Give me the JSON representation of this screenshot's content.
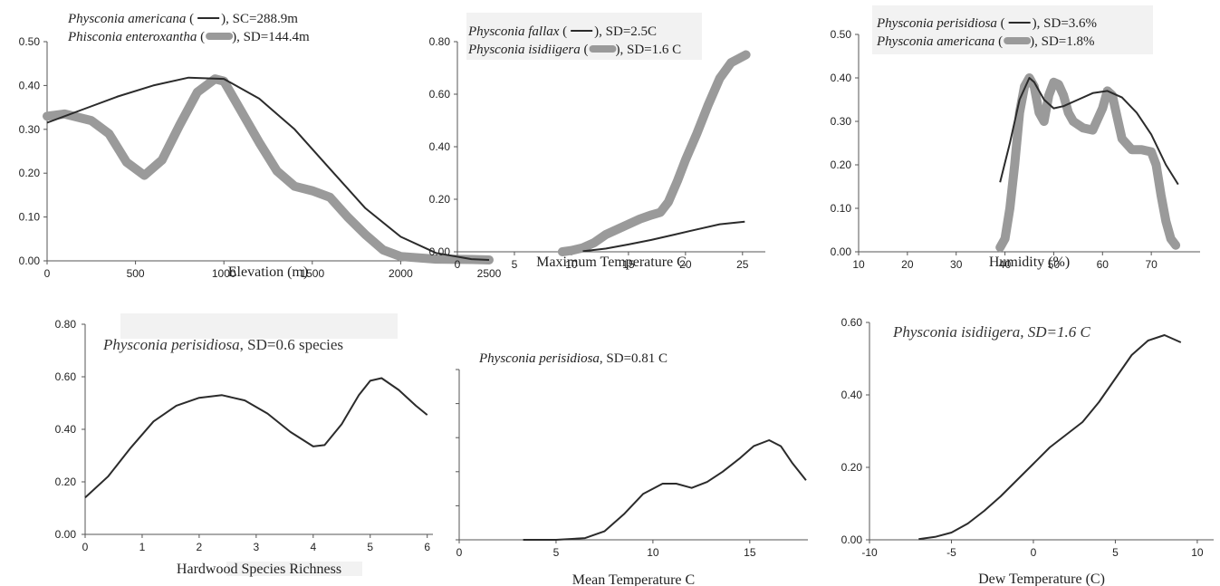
{
  "chart_data": [
    {
      "type": "line",
      "annotations": [
        {
          "italic": "Physconia americana",
          "rest": " (",
          "swatch": "line",
          "tail": "), SC=288.9m"
        },
        {
          "italic": "Phisconia enteroxantha",
          "rest": " (",
          "swatch": "band",
          "tail": "), SD=144.4m"
        }
      ],
      "xlabel": "Elevation (m)",
      "xlim": [
        0,
        2500
      ],
      "ylim": [
        0,
        0.5
      ],
      "xticks": [
        0,
        500,
        1000,
        1500,
        2000,
        2500
      ],
      "xtick_labels": [
        "0",
        "500",
        "1000",
        "1500",
        "2000",
        "2500"
      ],
      "yticks": [
        0,
        0.1,
        0.2,
        0.3,
        0.4,
        0.5
      ],
      "ytick_labels": [
        "0.00",
        "0.10",
        "0.20",
        "0.30",
        "0.40",
        "0.50"
      ],
      "series": [
        {
          "style": "line",
          "x": [
            0,
            200,
            400,
            600,
            800,
            1000,
            1200,
            1400,
            1600,
            1800,
            2000,
            2200,
            2400,
            2500
          ],
          "y": [
            0.315,
            0.345,
            0.375,
            0.4,
            0.418,
            0.415,
            0.37,
            0.3,
            0.21,
            0.12,
            0.055,
            0.018,
            0.004,
            0.002
          ]
        },
        {
          "style": "band",
          "x": [
            0,
            100,
            250,
            350,
            450,
            550,
            650,
            750,
            850,
            950,
            1000,
            1100,
            1200,
            1300,
            1400,
            1500,
            1600,
            1700,
            1800,
            1900,
            2000,
            2200,
            2400,
            2500
          ],
          "y": [
            0.33,
            0.335,
            0.32,
            0.29,
            0.225,
            0.195,
            0.23,
            0.31,
            0.385,
            0.415,
            0.41,
            0.34,
            0.27,
            0.205,
            0.17,
            0.16,
            0.145,
            0.1,
            0.06,
            0.025,
            0.01,
            0.004,
            0.003,
            0.002
          ]
        }
      ]
    },
    {
      "type": "line",
      "annotations": [
        {
          "italic": "Physconia fallax",
          "rest": " (",
          "swatch": "line",
          "tail": "), SD=2.5C"
        },
        {
          "italic": "Physconia isidiigera",
          "rest": " (",
          "swatch": "band",
          "tail": "), SD=1.6 C"
        }
      ],
      "xlabel": "Maximum Temperature C",
      "xlim": [
        0,
        27
      ],
      "ylim": [
        0,
        0.8
      ],
      "xticks": [
        0,
        5,
        10,
        15,
        20,
        25
      ],
      "xtick_labels": [
        "0",
        "5",
        "10",
        "15",
        "20",
        "25"
      ],
      "yticks": [
        0,
        0.2,
        0.4,
        0.6,
        0.8
      ],
      "ytick_labels": [
        "0.00",
        "0.20",
        "0.40",
        "0.60",
        "0.80"
      ],
      "series": [
        {
          "style": "line",
          "x": [
            11,
            13,
            15,
            17,
            19,
            21,
            23,
            25.2
          ],
          "y": [
            0.002,
            0.012,
            0.028,
            0.045,
            0.065,
            0.085,
            0.105,
            0.115
          ]
        },
        {
          "style": "band",
          "x": [
            9.2,
            10,
            11,
            12,
            13,
            14,
            15,
            16,
            17,
            17.8,
            18.5,
            19.3,
            20,
            21,
            22,
            23,
            24,
            25.3
          ],
          "y": [
            0,
            0.005,
            0.015,
            0.035,
            0.065,
            0.085,
            0.105,
            0.125,
            0.14,
            0.15,
            0.19,
            0.27,
            0.35,
            0.45,
            0.56,
            0.66,
            0.72,
            0.75
          ]
        }
      ]
    },
    {
      "type": "line",
      "annotations": [
        {
          "italic": "Physconia perisidiosa",
          "rest": " (",
          "swatch": "line",
          "tail": "), SD=3.6%"
        },
        {
          "italic": "Physconia americana",
          "rest": " (",
          "swatch": "band",
          "tail": "), SD=1.8%"
        }
      ],
      "xlabel": "Humidity (%)",
      "xlim": [
        10,
        80
      ],
      "ylim": [
        0,
        0.5
      ],
      "xticks": [
        10,
        20,
        30,
        40,
        50,
        60,
        70
      ],
      "xtick_labels": [
        "10",
        "20",
        "30",
        "40",
        "50",
        "60",
        "70"
      ],
      "yticks": [
        0,
        0.1,
        0.2,
        0.3,
        0.4,
        0.5
      ],
      "ytick_labels": [
        "0.00",
        "0.10",
        "0.20",
        "0.30",
        "0.40",
        "0.50"
      ],
      "series": [
        {
          "style": "line",
          "x": [
            39,
            41,
            43,
            45,
            46,
            48,
            50,
            52,
            55,
            58,
            61,
            64,
            67,
            70,
            73,
            75.5
          ],
          "y": [
            0.16,
            0.25,
            0.35,
            0.4,
            0.39,
            0.35,
            0.33,
            0.335,
            0.35,
            0.365,
            0.37,
            0.355,
            0.32,
            0.27,
            0.2,
            0.155
          ]
        },
        {
          "style": "band",
          "x": [
            39,
            40,
            41,
            42,
            43,
            44,
            45,
            46,
            47,
            48,
            49,
            50,
            51,
            52,
            53,
            54,
            56,
            58,
            60,
            61,
            62,
            63,
            64,
            66,
            68,
            70,
            71,
            72,
            73,
            74,
            75
          ],
          "y": [
            0.01,
            0.03,
            0.1,
            0.2,
            0.32,
            0.38,
            0.4,
            0.38,
            0.32,
            0.3,
            0.36,
            0.39,
            0.385,
            0.36,
            0.32,
            0.3,
            0.285,
            0.28,
            0.33,
            0.37,
            0.36,
            0.31,
            0.26,
            0.235,
            0.235,
            0.23,
            0.2,
            0.13,
            0.07,
            0.03,
            0.015
          ]
        }
      ]
    },
    {
      "type": "line",
      "annotations": [
        {
          "italic": "Physconia perisidiosa",
          "rest": ", SD=0.6 species"
        }
      ],
      "xlabel": "Hardwood Species Richness",
      "xlim": [
        0,
        6.1
      ],
      "ylim": [
        0,
        0.8
      ],
      "xticks": [
        0,
        1,
        2,
        3,
        4,
        5,
        6
      ],
      "xtick_labels": [
        "0",
        "1",
        "2",
        "3",
        "4",
        "5",
        "6"
      ],
      "yticks": [
        0,
        0.2,
        0.4,
        0.6,
        0.8
      ],
      "ytick_labels": [
        "0.00",
        "0.20",
        "0.40",
        "0.60",
        "0.80"
      ],
      "series": [
        {
          "style": "line",
          "x": [
            0,
            0.4,
            0.8,
            1.2,
            1.6,
            2.0,
            2.4,
            2.8,
            3.2,
            3.6,
            4.0,
            4.2,
            4.5,
            4.8,
            5.0,
            5.2,
            5.5,
            5.8,
            6.0
          ],
          "y": [
            0.14,
            0.22,
            0.33,
            0.43,
            0.49,
            0.52,
            0.53,
            0.51,
            0.46,
            0.39,
            0.335,
            0.34,
            0.42,
            0.53,
            0.585,
            0.595,
            0.55,
            0.49,
            0.455
          ]
        }
      ]
    },
    {
      "type": "line",
      "annotations": [
        {
          "italic": "Physconia perisidiosa",
          "rest": ", SD=0.81 C"
        }
      ],
      "xlabel": "Mean Temperature C",
      "xlim": [
        0,
        18
      ],
      "ylim": [
        0,
        1
      ],
      "xticks": [
        0,
        5,
        10,
        15
      ],
      "xtick_labels": [
        "0",
        "5",
        "10",
        "15"
      ],
      "yticks": [
        0,
        0.2,
        0.4,
        0.6,
        0.8,
        1
      ],
      "series": [
        {
          "style": "line",
          "x": [
            3.3,
            5,
            6.5,
            7.5,
            8.5,
            9.5,
            10.5,
            11.2,
            12,
            12.8,
            13.6,
            14.5,
            15.2,
            16,
            16.6,
            17.2,
            17.9
          ],
          "y": [
            0.0,
            0.0,
            0.01,
            0.05,
            0.15,
            0.27,
            0.33,
            0.33,
            0.305,
            0.34,
            0.4,
            0.48,
            0.55,
            0.585,
            0.55,
            0.45,
            0.35
          ]
        }
      ]
    },
    {
      "type": "line",
      "annotations": [
        {
          "italic": "Physconia isidiigera, SD=1.6 C",
          "rest": ""
        }
      ],
      "xlabel": "Dew Temperature (C)",
      "xlim": [
        -10,
        11
      ],
      "ylim": [
        0,
        0.6
      ],
      "xticks": [
        -10,
        -5,
        0,
        5,
        10
      ],
      "xtick_labels": [
        "-10",
        "-5",
        "0",
        "5",
        "10"
      ],
      "yticks": [
        0,
        0.2,
        0.4,
        0.6
      ],
      "ytick_labels": [
        "0.00",
        "0.20",
        "0.40",
        "0.60"
      ],
      "series": [
        {
          "style": "line",
          "x": [
            -7,
            -6,
            -5,
            -4,
            -3,
            -2,
            -1,
            0,
            1,
            2,
            3,
            4,
            5,
            6,
            7,
            8,
            9
          ],
          "y": [
            0.002,
            0.008,
            0.02,
            0.045,
            0.08,
            0.12,
            0.165,
            0.21,
            0.255,
            0.29,
            0.325,
            0.38,
            0.445,
            0.51,
            0.55,
            0.565,
            0.545
          ]
        }
      ]
    }
  ],
  "colors": {
    "line": "#2b2b2b",
    "band": "#9a9a9a",
    "axis": "#555555",
    "highlight": "#f2f2f2"
  }
}
